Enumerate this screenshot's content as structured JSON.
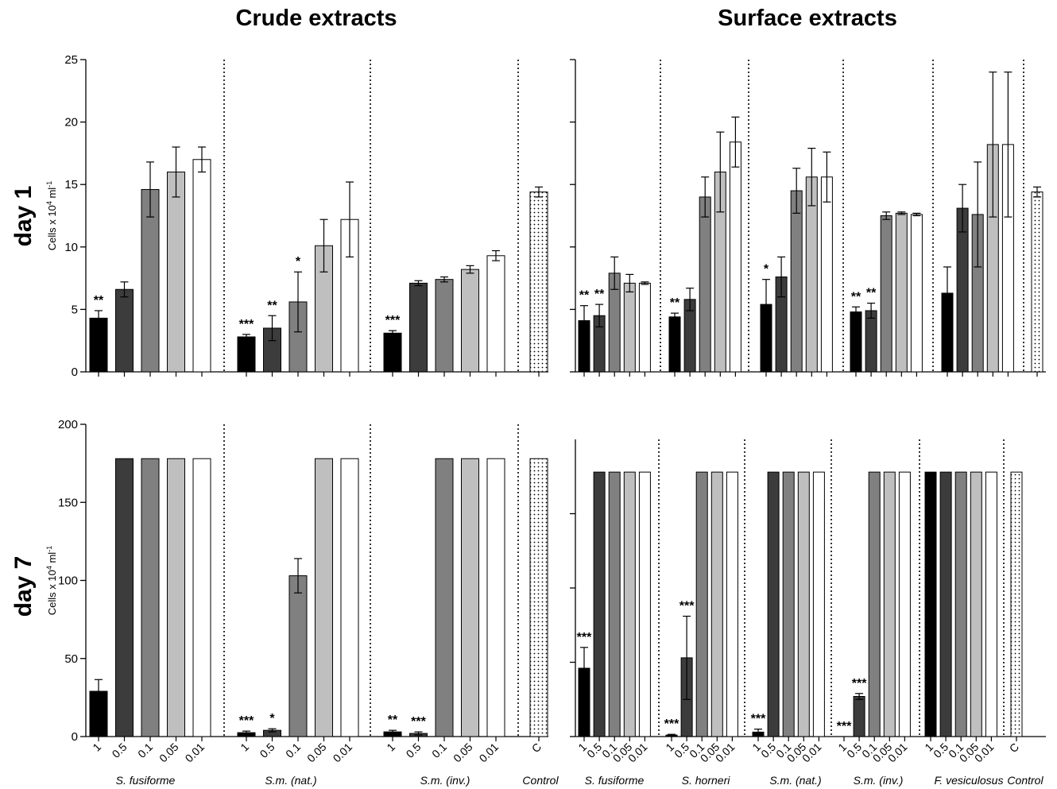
{
  "headers": {
    "left": "Crude extracts",
    "right": "Surface extracts"
  },
  "rows": {
    "top": "day 1",
    "bottom": "day 7"
  },
  "colors": {
    "1": "#000000",
    "0.5": "#3c3c3c",
    "0.1": "#808080",
    "0.05": "#bfbfbf",
    "0.01": "#ffffff",
    "C": "dotted"
  },
  "chart_data": [
    {
      "id": "crude-day1",
      "type": "bar",
      "ylim": [
        0,
        25
      ],
      "yticks": [
        0,
        5,
        10,
        15,
        20,
        25
      ],
      "ylabel": {
        "main": "Cells x 10",
        "sup": "4",
        "rest": " ml",
        "sup2": "-1"
      },
      "show_tick_labels": true,
      "groups": [
        {
          "name": "S. fusiforme",
          "bars": [
            {
              "cat": "1",
              "value": 4.3,
              "err": 0.6,
              "sig": "**"
            },
            {
              "cat": "0.5",
              "value": 6.6,
              "err": 0.6,
              "sig": ""
            },
            {
              "cat": "0.1",
              "value": 14.6,
              "err": 2.2,
              "sig": ""
            },
            {
              "cat": "0.05",
              "value": 16.0,
              "err": 2.0,
              "sig": ""
            },
            {
              "cat": "0.01",
              "value": 17.0,
              "err": 1.0,
              "sig": ""
            }
          ]
        },
        {
          "name": "S.m. (nat.)",
          "bars": [
            {
              "cat": "1",
              "value": 2.8,
              "err": 0.2,
              "sig": "***"
            },
            {
              "cat": "0.5",
              "value": 3.5,
              "err": 1.0,
              "sig": "**"
            },
            {
              "cat": "0.1",
              "value": 5.6,
              "err": 2.4,
              "sig": "*"
            },
            {
              "cat": "0.05",
              "value": 10.1,
              "err": 2.1,
              "sig": ""
            },
            {
              "cat": "0.01",
              "value": 12.2,
              "err": 3.0,
              "sig": ""
            }
          ]
        },
        {
          "name": "S.m. (inv.)",
          "bars": [
            {
              "cat": "1",
              "value": 3.1,
              "err": 0.2,
              "sig": "***"
            },
            {
              "cat": "0.5",
              "value": 7.1,
              "err": 0.2,
              "sig": ""
            },
            {
              "cat": "0.1",
              "value": 7.4,
              "err": 0.2,
              "sig": ""
            },
            {
              "cat": "0.05",
              "value": 8.2,
              "err": 0.3,
              "sig": ""
            },
            {
              "cat": "0.01",
              "value": 9.3,
              "err": 0.4,
              "sig": ""
            }
          ]
        },
        {
          "name": "Control",
          "bars": [
            {
              "cat": "C",
              "value": 14.4,
              "err": 0.4,
              "sig": ""
            }
          ]
        }
      ]
    },
    {
      "id": "surface-day1",
      "type": "bar",
      "ylim": [
        0,
        25
      ],
      "yticks": [
        0,
        5,
        10,
        15,
        20,
        25
      ],
      "show_tick_labels": false,
      "groups": [
        {
          "name": "S. fusiforme",
          "bars": [
            {
              "cat": "1",
              "value": 4.1,
              "err": 1.2,
              "sig": "**"
            },
            {
              "cat": "0.5",
              "value": 4.5,
              "err": 0.9,
              "sig": "**"
            },
            {
              "cat": "0.1",
              "value": 7.9,
              "err": 1.3,
              "sig": ""
            },
            {
              "cat": "0.05",
              "value": 7.1,
              "err": 0.7,
              "sig": ""
            },
            {
              "cat": "0.01",
              "value": 7.1,
              "err": 0.1,
              "sig": ""
            }
          ]
        },
        {
          "name": "S. horneri",
          "bars": [
            {
              "cat": "1",
              "value": 4.4,
              "err": 0.3,
              "sig": "**"
            },
            {
              "cat": "0.5",
              "value": 5.8,
              "err": 0.9,
              "sig": ""
            },
            {
              "cat": "0.1",
              "value": 14.0,
              "err": 1.6,
              "sig": ""
            },
            {
              "cat": "0.05",
              "value": 16.0,
              "err": 3.2,
              "sig": ""
            },
            {
              "cat": "0.01",
              "value": 18.4,
              "err": 2.0,
              "sig": ""
            }
          ]
        },
        {
          "name": "S.m. (nat.)",
          "bars": [
            {
              "cat": "1",
              "value": 5.4,
              "err": 2.0,
              "sig": "*"
            },
            {
              "cat": "0.5",
              "value": 7.6,
              "err": 1.6,
              "sig": ""
            },
            {
              "cat": "0.1",
              "value": 14.5,
              "err": 1.8,
              "sig": ""
            },
            {
              "cat": "0.05",
              "value": 15.6,
              "err": 2.3,
              "sig": ""
            },
            {
              "cat": "0.01",
              "value": 15.6,
              "err": 2.0,
              "sig": ""
            }
          ]
        },
        {
          "name": "S.m. (inv.)",
          "bars": [
            {
              "cat": "1",
              "value": 4.8,
              "err": 0.4,
              "sig": "**"
            },
            {
              "cat": "0.5",
              "value": 4.9,
              "err": 0.6,
              "sig": "**"
            },
            {
              "cat": "0.1",
              "value": 12.5,
              "err": 0.3,
              "sig": ""
            },
            {
              "cat": "0.05",
              "value": 12.7,
              "err": 0.1,
              "sig": ""
            },
            {
              "cat": "0.01",
              "value": 12.6,
              "err": 0.1,
              "sig": ""
            }
          ]
        },
        {
          "name": "F. vesiculosus",
          "bars": [
            {
              "cat": "1",
              "value": 6.3,
              "err": 2.1,
              "sig": ""
            },
            {
              "cat": "0.5",
              "value": 13.1,
              "err": 1.9,
              "sig": ""
            },
            {
              "cat": "0.1",
              "value": 12.6,
              "err": 4.2,
              "sig": ""
            },
            {
              "cat": "0.05",
              "value": 18.2,
              "err": 5.8,
              "sig": ""
            },
            {
              "cat": "0.01",
              "value": 18.2,
              "err": 5.8,
              "sig": ""
            }
          ]
        },
        {
          "name": "Control",
          "bars": [
            {
              "cat": "C",
              "value": 14.4,
              "err": 0.4,
              "sig": ""
            }
          ]
        }
      ]
    },
    {
      "id": "crude-day7",
      "type": "bar",
      "ylim": [
        0,
        200
      ],
      "yticks": [
        0,
        50,
        100,
        150,
        200
      ],
      "ylabel": {
        "main": "Cells x 10",
        "sup": "4",
        "rest": " ml",
        "sup2": "-1"
      },
      "show_tick_labels": true,
      "groups": [
        {
          "name": "S. fusiforme",
          "bars": [
            {
              "cat": "1",
              "value": 29,
              "err": 7.5,
              "sig": ""
            },
            {
              "cat": "0.5",
              "value": 178,
              "err": 0,
              "sig": ""
            },
            {
              "cat": "0.1",
              "value": 178,
              "err": 0,
              "sig": ""
            },
            {
              "cat": "0.05",
              "value": 178,
              "err": 0,
              "sig": ""
            },
            {
              "cat": "0.01",
              "value": 178,
              "err": 0,
              "sig": ""
            }
          ]
        },
        {
          "name": "S.m. (nat.)",
          "bars": [
            {
              "cat": "1",
              "value": 2.5,
              "err": 1,
              "sig": "***"
            },
            {
              "cat": "0.5",
              "value": 4,
              "err": 1,
              "sig": "*"
            },
            {
              "cat": "0.1",
              "value": 103,
              "err": 11,
              "sig": ""
            },
            {
              "cat": "0.05",
              "value": 178,
              "err": 0,
              "sig": ""
            },
            {
              "cat": "0.01",
              "value": 178,
              "err": 0,
              "sig": ""
            }
          ]
        },
        {
          "name": "S.m. (inv.)",
          "bars": [
            {
              "cat": "1",
              "value": 3,
              "err": 1,
              "sig": "**"
            },
            {
              "cat": "0.5",
              "value": 2,
              "err": 1,
              "sig": "***"
            },
            {
              "cat": "0.1",
              "value": 178,
              "err": 0,
              "sig": ""
            },
            {
              "cat": "0.05",
              "value": 178,
              "err": 0,
              "sig": ""
            },
            {
              "cat": "0.01",
              "value": 178,
              "err": 0,
              "sig": ""
            }
          ]
        },
        {
          "name": "Control",
          "bars": [
            {
              "cat": "C",
              "value": 178,
              "err": 0,
              "sig": ""
            }
          ]
        }
      ]
    },
    {
      "id": "surface-day7",
      "type": "bar",
      "ylim": [
        0,
        200
      ],
      "yticks": [
        0,
        50,
        100,
        150,
        200
      ],
      "show_tick_labels": false,
      "groups": [
        {
          "name": "S. fusiforme",
          "bars": [
            {
              "cat": "1",
              "value": 46,
              "err": 14,
              "sig": "***"
            },
            {
              "cat": "0.5",
              "value": 178,
              "err": 0,
              "sig": ""
            },
            {
              "cat": "0.1",
              "value": 178,
              "err": 0,
              "sig": ""
            },
            {
              "cat": "0.05",
              "value": 178,
              "err": 0,
              "sig": ""
            },
            {
              "cat": "0.01",
              "value": 178,
              "err": 0,
              "sig": ""
            }
          ]
        },
        {
          "name": "S. horneri",
          "bars": [
            {
              "cat": "1",
              "value": 1,
              "err": 0.5,
              "sig": "***"
            },
            {
              "cat": "0.5",
              "value": 53,
              "err": 28,
              "sig": "***"
            },
            {
              "cat": "0.1",
              "value": 178,
              "err": 0,
              "sig": ""
            },
            {
              "cat": "0.05",
              "value": 178,
              "err": 0,
              "sig": ""
            },
            {
              "cat": "0.01",
              "value": 178,
              "err": 0,
              "sig": ""
            }
          ]
        },
        {
          "name": "S.m. (nat.)",
          "bars": [
            {
              "cat": "1",
              "value": 3,
              "err": 2,
              "sig": "***"
            },
            {
              "cat": "0.5",
              "value": 178,
              "err": 0,
              "sig": ""
            },
            {
              "cat": "0.1",
              "value": 178,
              "err": 0,
              "sig": ""
            },
            {
              "cat": "0.05",
              "value": 178,
              "err": 0,
              "sig": ""
            },
            {
              "cat": "0.01",
              "value": 178,
              "err": 0,
              "sig": ""
            }
          ]
        },
        {
          "name": "S.m. (inv.)",
          "bars": [
            {
              "cat": "1",
              "value": 0,
              "err": 0,
              "sig": "***"
            },
            {
              "cat": "0.5",
              "value": 27,
              "err": 2,
              "sig": "***"
            },
            {
              "cat": "0.1",
              "value": 178,
              "err": 0,
              "sig": ""
            },
            {
              "cat": "0.05",
              "value": 178,
              "err": 0,
              "sig": ""
            },
            {
              "cat": "0.01",
              "value": 178,
              "err": 0,
              "sig": ""
            }
          ]
        },
        {
          "name": "F. vesiculosus",
          "bars": [
            {
              "cat": "1",
              "value": 178,
              "err": 0,
              "sig": ""
            },
            {
              "cat": "0.5",
              "value": 178,
              "err": 0,
              "sig": ""
            },
            {
              "cat": "0.1",
              "value": 178,
              "err": 0,
              "sig": ""
            },
            {
              "cat": "0.05",
              "value": 178,
              "err": 0,
              "sig": ""
            },
            {
              "cat": "0.01",
              "value": 178,
              "err": 0,
              "sig": ""
            }
          ]
        },
        {
          "name": "Control",
          "bars": [
            {
              "cat": "C",
              "value": 178,
              "err": 0,
              "sig": ""
            }
          ]
        }
      ]
    }
  ]
}
